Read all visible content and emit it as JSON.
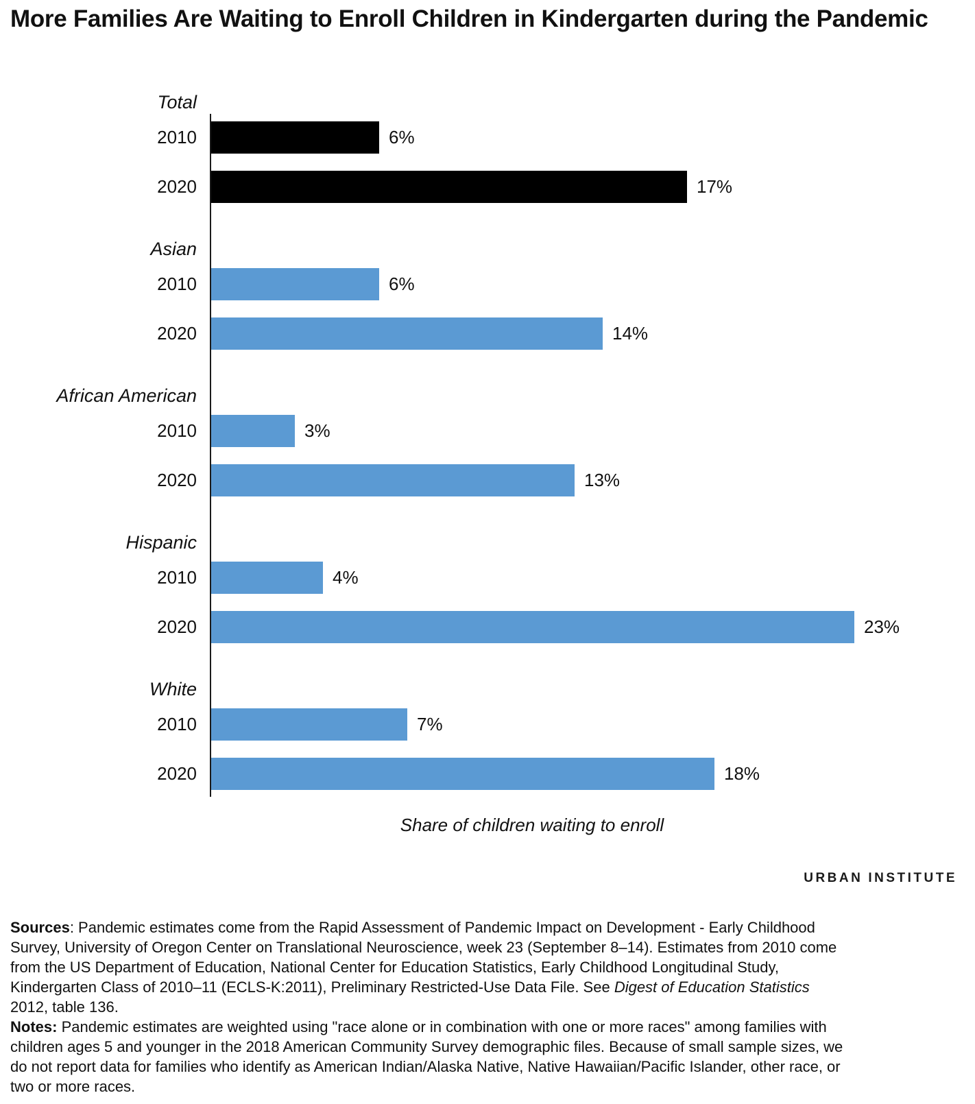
{
  "title": "More Families Are Waiting to Enroll Children in Kindergarten during the Pandemic",
  "colors": {
    "bar_blue": "#5b9ad3",
    "bar_black": "#000000",
    "logo_blue": "#4f94d4",
    "logo_black": "#0a0a0a",
    "text": "#111111"
  },
  "chart_data": {
    "type": "bar",
    "orientation": "horizontal",
    "unit": "percent",
    "value_suffix": "%",
    "xlabel": "Share of children waiting to enroll",
    "xlim": [
      0,
      27
    ],
    "grid": false,
    "legend": "none",
    "groups": [
      {
        "label": "Total",
        "color": "#000000",
        "bars": [
          {
            "year": "2010",
            "value": 6
          },
          {
            "year": "2020",
            "value": 17
          }
        ]
      },
      {
        "label": "Asian",
        "color": "#5b9ad3",
        "bars": [
          {
            "year": "2010",
            "value": 6
          },
          {
            "year": "2020",
            "value": 14
          }
        ]
      },
      {
        "label": "African American",
        "color": "#5b9ad3",
        "bars": [
          {
            "year": "2010",
            "value": 3
          },
          {
            "year": "2020",
            "value": 13
          }
        ]
      },
      {
        "label": "Hispanic",
        "color": "#5b9ad3",
        "bars": [
          {
            "year": "2010",
            "value": 4
          },
          {
            "year": "2020",
            "value": 23
          }
        ]
      },
      {
        "label": "White",
        "color": "#5b9ad3",
        "bars": [
          {
            "year": "2010",
            "value": 7
          },
          {
            "year": "2020",
            "value": 18
          }
        ]
      }
    ]
  },
  "logo": {
    "word1": "URBAN",
    "word2": "INSTITUTE"
  },
  "footer": {
    "paragraphs": [
      {
        "name": "sources",
        "segments": [
          {
            "text": "Sources",
            "bold": true
          },
          {
            "text": ": Pandemic estimates come from the Rapid Assessment of Pandemic Impact on Development - Early Childhood Survey, University of Oregon Center on Translational Neuroscience, week 23 (September 8–14). Estimates from 2010 come from the US Department of Education, National Center for Education Statistics, Early Childhood Longitudinal Study, Kindergarten Class of 2010–11 (ECLS-K:2011), Preliminary Restricted-Use Data File. See "
          },
          {
            "text": "Digest of Education Statistics",
            "italic": true
          },
          {
            "text": " 2012, table 136."
          }
        ]
      },
      {
        "name": "notes",
        "segments": [
          {
            "text": "Notes:",
            "bold": true
          },
          {
            "text": " Pandemic estimates are weighted using \"race alone or in combination with one or more races\" among families with children ages 5 and younger in the 2018 American Community Survey demographic files. Because of small sample sizes, we do not report data for families who identify as American Indian/Alaska Native, Native Hawaiian/Pacific Islander, other race, or two or more races."
          }
        ]
      }
    ]
  }
}
